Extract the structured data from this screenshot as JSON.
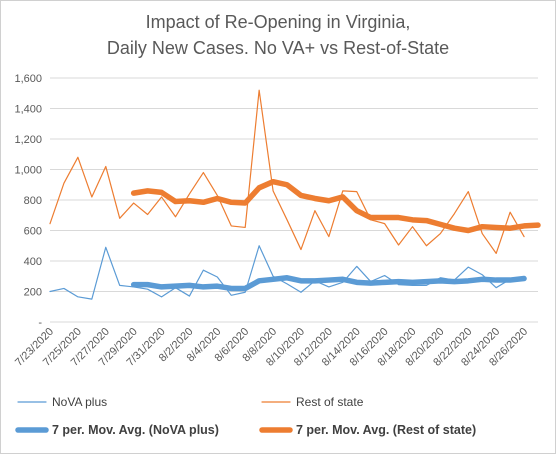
{
  "chart_data": {
    "type": "line",
    "title": [
      "Impact of Re-Opening in Virginia,",
      "Daily New Cases. No VA+ vs Rest-of-State"
    ],
    "x": [
      "7/23/2020",
      "7/24/2020",
      "7/25/2020",
      "7/26/2020",
      "7/27/2020",
      "7/28/2020",
      "7/29/2020",
      "7/30/2020",
      "7/31/2020",
      "8/1/2020",
      "8/2/2020",
      "8/3/2020",
      "8/4/2020",
      "8/5/2020",
      "8/6/2020",
      "8/7/2020",
      "8/8/2020",
      "8/9/2020",
      "8/10/2020",
      "8/11/2020",
      "8/12/2020",
      "8/13/2020",
      "8/14/2020",
      "8/15/2020",
      "8/16/2020",
      "8/17/2020",
      "8/18/2020",
      "8/19/2020",
      "8/20/2020",
      "8/21/2020",
      "8/22/2020",
      "8/23/2020",
      "8/24/2020",
      "8/25/2020",
      "8/26/2020",
      "8/27/2020"
    ],
    "x_tick_labels": [
      "7/23/2020",
      "7/25/2020",
      "7/27/2020",
      "7/29/2020",
      "7/31/2020",
      "8/2/2020",
      "8/4/2020",
      "8/6/2020",
      "8/8/2020",
      "8/10/2020",
      "8/12/2020",
      "8/14/2020",
      "8/16/2020",
      "8/18/2020",
      "8/20/2020",
      "8/22/2020",
      "8/24/2020",
      "8/26/2020"
    ],
    "y_ticks": [
      "-",
      "200",
      "400",
      "600",
      "800",
      "1,000",
      "1,200",
      "1,400",
      "1,600"
    ],
    "ylim": [
      0,
      1600
    ],
    "grid": "horizontal",
    "legend_position": "bottom",
    "series": [
      {
        "name": "NoVA plus",
        "color": "#5b9bd5",
        "style": "thin",
        "values": [
          200,
          220,
          165,
          150,
          490,
          240,
          230,
          215,
          165,
          225,
          170,
          340,
          295,
          175,
          195,
          500,
          300,
          250,
          195,
          270,
          230,
          260,
          365,
          265,
          305,
          245,
          240,
          240,
          290,
          275,
          360,
          310,
          225,
          280,
          285,
          null
        ]
      },
      {
        "name": "Rest of state",
        "color": "#ed7d31",
        "style": "thin",
        "values": [
          645,
          910,
          1080,
          820,
          1020,
          680,
          780,
          705,
          820,
          690,
          840,
          980,
          830,
          630,
          620,
          1520,
          860,
          670,
          475,
          730,
          560,
          860,
          855,
          670,
          645,
          505,
          625,
          500,
          580,
          710,
          855,
          580,
          450,
          720,
          560,
          null
        ]
      },
      {
        "name": "7 per. Mov. Avg. (NoVA plus)",
        "color": "#5b9bd5",
        "style": "thick",
        "values": [
          null,
          null,
          null,
          null,
          null,
          null,
          245,
          245,
          230,
          235,
          240,
          230,
          235,
          220,
          220,
          270,
          280,
          290,
          270,
          270,
          275,
          280,
          260,
          255,
          260,
          265,
          260,
          265,
          270,
          265,
          270,
          280,
          275,
          275,
          285,
          null
        ]
      },
      {
        "name": "7 per. Mov. Avg. (Rest of state)",
        "color": "#ed7d31",
        "style": "thick",
        "values": [
          null,
          null,
          null,
          null,
          null,
          null,
          845,
          860,
          850,
          790,
          795,
          785,
          810,
          785,
          780,
          880,
          920,
          900,
          830,
          810,
          795,
          820,
          730,
          685,
          685,
          685,
          670,
          665,
          640,
          615,
          600,
          625,
          620,
          615,
          630,
          635
        ]
      }
    ]
  }
}
